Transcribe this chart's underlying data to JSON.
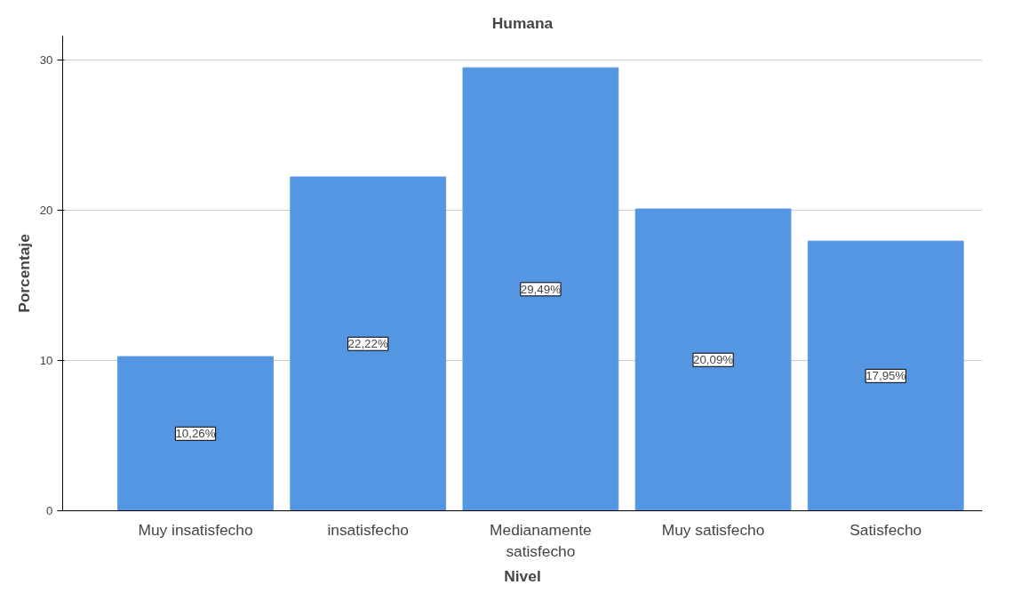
{
  "chart_data": {
    "type": "bar",
    "title": "Humana",
    "xlabel": "Nivel",
    "ylabel": "Porcentaje",
    "categories": [
      "Muy insatisfecho",
      "insatisfecho",
      "Medianamente satisfecho",
      "Muy satisfecho",
      "Satisfecho"
    ],
    "values": [
      10.26,
      22.22,
      29.49,
      20.09,
      17.95
    ],
    "value_labels": [
      "10,26%",
      "22,22%",
      "29,49%",
      "20,09%",
      "17,95%"
    ],
    "color": "#5596e3",
    "ylim": [
      0,
      31.6
    ],
    "yticks": [
      0,
      10,
      20,
      30
    ],
    "grid": "y"
  }
}
